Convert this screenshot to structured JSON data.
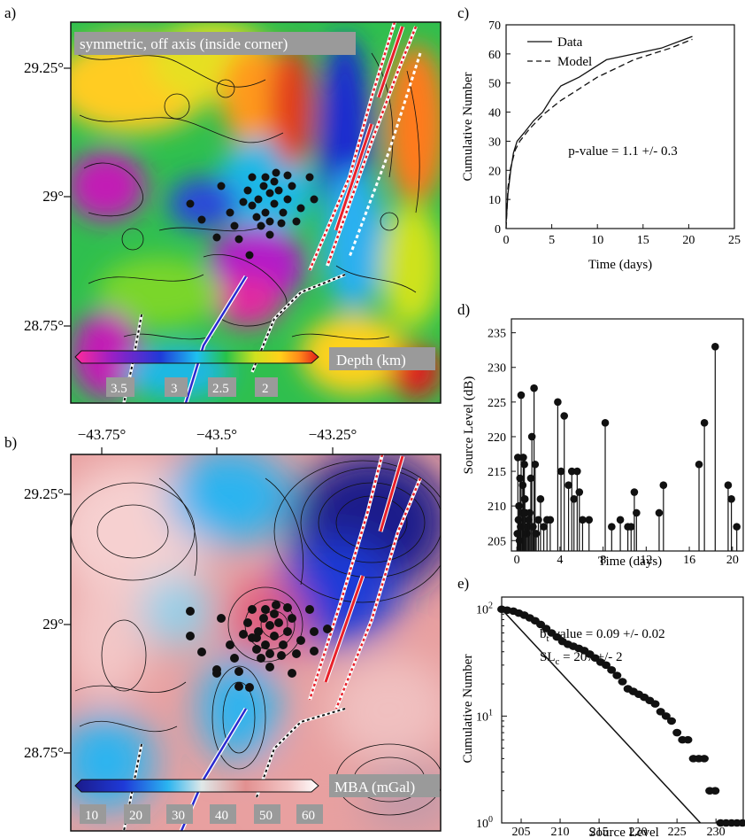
{
  "panel_labels": {
    "a": "a)",
    "b": "b)",
    "c": "c)",
    "d": "d)",
    "e": "e)"
  },
  "map_a": {
    "title": "symmetric, off axis (inside corner)",
    "colorbar_label": "Depth (km)",
    "colorbar_ticks": [
      "3.5",
      "3",
      "2.5",
      "2"
    ],
    "lat_labels": [
      "29.25°",
      "29°",
      "28.75°"
    ]
  },
  "lon_labels": [
    "−43.75°",
    "−43.5°",
    "−43.25°"
  ],
  "map_b": {
    "colorbar_label": "MBA (mGal)",
    "colorbar_ticks": [
      "10",
      "20",
      "30",
      "40",
      "50",
      "60"
    ],
    "lat_labels": [
      "29.25°",
      "29°",
      "28.75°"
    ]
  },
  "colors": {
    "ridge_red": "#e8202a",
    "ridge_white": "#ffffff",
    "dot": "#111111",
    "transform_blue": "#2a2ad0"
  },
  "chart_data": [
    {
      "panel": "c",
      "type": "line",
      "xlabel": "Time (days)",
      "ylabel": "Cumulative Number",
      "xlim": [
        0,
        25
      ],
      "ylim": [
        0,
        70
      ],
      "xticks": [
        "0",
        "5",
        "10",
        "15",
        "20",
        "25"
      ],
      "yticks": [
        "0",
        "10",
        "20",
        "30",
        "40",
        "50",
        "60",
        "70"
      ],
      "legend_placement": "top-left",
      "annotation": "p-value = 1.1 +/- 0.3",
      "series": [
        {
          "name": "Data",
          "style": "solid",
          "x": [
            0,
            0.2,
            0.5,
            0.8,
            1.2,
            2,
            3,
            4,
            5,
            6,
            8,
            11,
            14,
            17,
            20.4
          ],
          "y": [
            2,
            12,
            20,
            26,
            30,
            33,
            37,
            40,
            45,
            49,
            52,
            58,
            60,
            62,
            66
          ]
        },
        {
          "name": "Model",
          "style": "dashed",
          "x": [
            0,
            0.2,
            0.5,
            1,
            1.5,
            2.5,
            4,
            6,
            8,
            10,
            12,
            14,
            16,
            18,
            20.4
          ],
          "y": [
            0,
            14,
            21,
            27,
            30,
            34,
            39,
            44,
            48,
            52,
            55,
            58,
            60,
            62,
            65
          ]
        }
      ]
    },
    {
      "panel": "d",
      "type": "bar",
      "xlabel": "Time (days)",
      "ylabel": "Source Level (dB)",
      "xlim": [
        -0.5,
        21
      ],
      "ylim": [
        203.5,
        237
      ],
      "xticks": [
        "0",
        "4",
        "8",
        "12",
        "16",
        "20"
      ],
      "yticks": [
        "205",
        "210",
        "215",
        "220",
        "225",
        "230",
        "235"
      ],
      "x": [
        0.05,
        0.1,
        0.15,
        0.2,
        0.25,
        0.3,
        0.35,
        0.4,
        0.5,
        0.55,
        0.6,
        0.7,
        0.75,
        0.8,
        0.9,
        1.0,
        1.1,
        1.2,
        1.3,
        1.4,
        1.5,
        1.6,
        1.7,
        1.8,
        2.0,
        2.2,
        2.5,
        2.8,
        3.1,
        3.8,
        4.1,
        4.4,
        4.8,
        5.1,
        5.3,
        5.6,
        5.8,
        6.1,
        6.7,
        8.2,
        8.8,
        9.6,
        10.3,
        10.6,
        10.9,
        11.1,
        13.2,
        13.6,
        16.9,
        17.4,
        18.4,
        19.6,
        19.9,
        20.4
      ],
      "y": [
        206,
        217,
        208,
        210,
        205,
        214,
        207,
        226,
        209,
        213,
        217,
        216,
        211,
        209,
        206,
        207,
        208,
        209,
        214,
        220,
        207,
        227,
        216,
        206,
        208,
        211,
        207,
        208,
        208,
        225,
        215,
        223,
        213,
        215,
        211,
        215,
        212,
        208,
        208,
        222,
        207,
        208,
        207,
        207,
        212,
        209,
        209,
        213,
        216,
        222,
        233,
        213,
        211,
        207
      ]
    },
    {
      "panel": "e",
      "type": "scatter",
      "xlabel": "Source Level",
      "ylabel": "Cumulative Number",
      "xlim": [
        202.5,
        233.5
      ],
      "ylim": [
        1,
        130
      ],
      "log_y": true,
      "xticks": [
        "205",
        "210",
        "215",
        "220",
        "225",
        "230"
      ],
      "yticks": [
        "10^0",
        "10^1",
        "10^2"
      ],
      "annotation_b": "b_t-value = 0.09 +/- 0.02",
      "annotation_sl": "SL_c = 207 +/- 2",
      "x": [
        202.5,
        203.2,
        204,
        204.7,
        205.4,
        206.1,
        206.8,
        207.5,
        208.2,
        208.9,
        209.6,
        210.3,
        211,
        211.7,
        212.4,
        213.1,
        213.8,
        214.5,
        215.2,
        215.9,
        216.6,
        217.3,
        218,
        218.7,
        219.4,
        220.1,
        220.8,
        221.5,
        222.2,
        222.9,
        223.6,
        224.3,
        225,
        225.7,
        226.4,
        227.1,
        227.8,
        228.5,
        229.2,
        229.9,
        230.6,
        231.3,
        232,
        232.7,
        233.4
      ],
      "y": [
        100,
        98,
        96,
        92,
        88,
        83,
        78,
        72,
        66,
        60,
        55,
        50,
        47,
        45,
        43,
        41,
        38,
        35,
        32,
        30,
        27,
        24,
        21,
        18,
        17,
        16,
        15,
        14,
        13,
        11,
        10,
        9,
        7,
        6,
        6,
        4,
        4,
        4,
        2,
        2,
        1,
        1,
        1,
        1,
        1
      ],
      "fit": {
        "x": [
          202.5,
          228
        ],
        "y": [
          100,
          1
        ]
      }
    }
  ]
}
